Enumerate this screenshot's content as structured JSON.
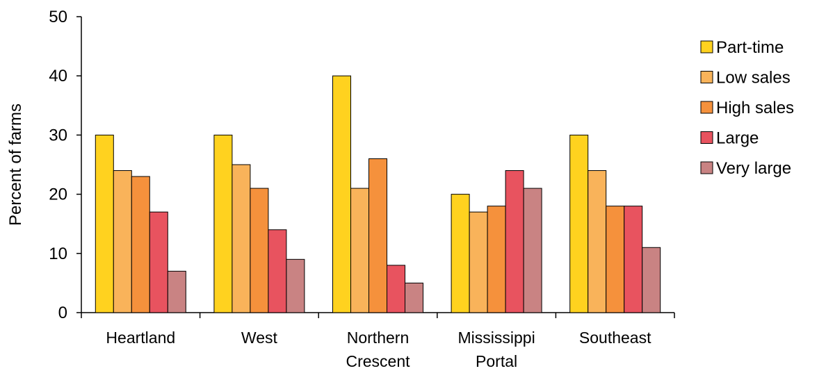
{
  "chart_data": {
    "type": "bar",
    "y_label": "Percent of farms",
    "categories": [
      "Heartland",
      "West",
      "Northern Crescent",
      "Mississippi Portal",
      "Southeast"
    ],
    "series": [
      {
        "name": "Part-time",
        "color": "#ffd21f",
        "values": [
          30,
          30,
          40,
          20,
          30
        ]
      },
      {
        "name": "Low sales",
        "color": "#f9b35a",
        "values": [
          24,
          25,
          21,
          17,
          24
        ]
      },
      {
        "name": "High sales",
        "color": "#f5913c",
        "values": [
          23,
          21,
          26,
          18,
          18
        ]
      },
      {
        "name": "Large",
        "color": "#e8535f",
        "values": [
          17,
          14,
          8,
          24,
          18
        ]
      },
      {
        "name": "Very large",
        "color": "#c98383",
        "values": [
          7,
          9,
          5,
          21,
          11
        ]
      }
    ],
    "ylim": [
      0,
      50
    ],
    "yticks": [
      0,
      10,
      20,
      30,
      40,
      50
    ],
    "legend": "right"
  }
}
